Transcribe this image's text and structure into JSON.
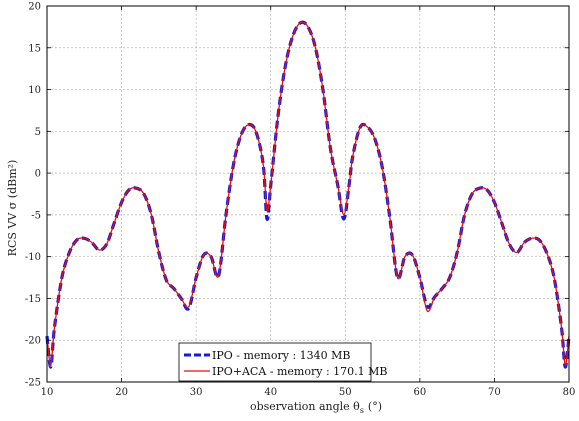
{
  "chart_data": {
    "type": "line",
    "title": "",
    "xlabel": "observation angle θ",
    "xlabel_sub": "s",
    "xlabel_unit": "(°)",
    "ylabel": "RCS VV σ (dBm²)",
    "xlim": [
      10,
      80
    ],
    "ylim": [
      -25,
      20
    ],
    "xticks": [
      10,
      20,
      30,
      40,
      50,
      60,
      70,
      80
    ],
    "yticks": [
      -25,
      -20,
      -15,
      -10,
      -5,
      0,
      5,
      10,
      15,
      20
    ],
    "grid": true,
    "legend_position": "bottom-center",
    "series": [
      {
        "name": "IPO - memory : 1340 MB",
        "color": "#1a1ad6",
        "style": "dashed",
        "x": [
          10,
          10.5,
          11,
          12,
          13,
          14,
          15,
          16,
          17,
          18,
          19,
          20,
          21,
          22,
          23,
          24,
          25,
          26,
          27,
          28,
          29,
          30,
          31,
          32,
          33,
          34,
          35,
          36,
          37,
          38,
          39,
          39.5,
          40,
          41,
          42,
          43,
          44,
          45,
          46,
          47,
          48,
          49,
          49.8,
          50.5,
          51,
          52,
          53,
          54,
          55,
          56,
          57,
          58,
          59,
          60,
          61,
          62,
          63,
          64,
          65,
          66,
          67,
          68,
          69,
          70,
          71,
          72,
          73,
          74,
          75,
          76,
          77,
          78,
          79,
          79.5,
          80
        ],
        "y": [
          -19.5,
          -23.2,
          -18.5,
          -12.5,
          -9.5,
          -8.0,
          -7.8,
          -8.3,
          -9.2,
          -8.5,
          -6.0,
          -3.5,
          -2.0,
          -1.8,
          -2.5,
          -5.0,
          -9.5,
          -12.8,
          -13.8,
          -15.0,
          -16.2,
          -12.5,
          -9.8,
          -10.0,
          -12.3,
          -5.0,
          1.0,
          4.5,
          5.8,
          5.0,
          1.0,
          -5.5,
          -1.5,
          7.0,
          13.0,
          16.5,
          18.0,
          17.5,
          15.0,
          10.0,
          3.0,
          -1.5,
          -5.5,
          -1.5,
          2.0,
          5.5,
          5.5,
          4.0,
          0.5,
          -5.5,
          -12.5,
          -10.0,
          -9.8,
          -12.5,
          -16.0,
          -14.8,
          -13.8,
          -12.5,
          -9.5,
          -5.0,
          -2.5,
          -1.8,
          -2.0,
          -3.5,
          -6.0,
          -8.5,
          -9.5,
          -8.3,
          -7.8,
          -8.0,
          -9.5,
          -12.5,
          -18.5,
          -23.2,
          -19.5
        ]
      },
      {
        "name": "IPO+ACA - memory : 170.1 MB",
        "color": "#e01010",
        "style": "solid",
        "x": [
          10,
          10.5,
          11,
          12,
          13,
          14,
          15,
          16,
          17,
          18,
          19,
          20,
          21,
          22,
          23,
          24,
          25,
          26,
          27,
          28,
          29,
          30,
          31,
          32,
          33,
          34,
          35,
          36,
          37,
          38,
          39,
          39.5,
          40,
          41,
          42,
          43,
          44,
          45,
          46,
          47,
          48,
          49,
          49.8,
          50.5,
          51,
          52,
          53,
          54,
          55,
          56,
          57,
          58,
          59,
          60,
          61,
          62,
          63,
          64,
          65,
          66,
          67,
          68,
          69,
          70,
          71,
          72,
          73,
          74,
          75,
          76,
          77,
          78,
          79,
          79.5,
          80
        ],
        "y": [
          -19.5,
          -23.0,
          -18.5,
          -12.5,
          -9.5,
          -8.0,
          -7.8,
          -8.3,
          -9.2,
          -8.5,
          -6.0,
          -3.5,
          -2.0,
          -1.8,
          -2.5,
          -5.0,
          -9.5,
          -12.8,
          -13.8,
          -15.0,
          -16.0,
          -12.5,
          -9.8,
          -10.0,
          -12.3,
          -5.0,
          1.0,
          4.5,
          5.8,
          5.0,
          1.0,
          -4.5,
          -1.5,
          7.0,
          13.0,
          16.5,
          18.0,
          17.5,
          15.0,
          10.0,
          3.0,
          -1.5,
          -5.0,
          -1.5,
          2.0,
          5.5,
          5.5,
          4.0,
          0.5,
          -5.5,
          -12.5,
          -10.0,
          -9.8,
          -12.5,
          -16.5,
          -14.8,
          -13.8,
          -12.5,
          -9.5,
          -5.0,
          -2.5,
          -1.8,
          -2.0,
          -3.5,
          -6.0,
          -8.5,
          -9.5,
          -8.3,
          -7.8,
          -8.0,
          -9.5,
          -12.5,
          -18.5,
          -23.0,
          -19.5
        ]
      }
    ]
  }
}
